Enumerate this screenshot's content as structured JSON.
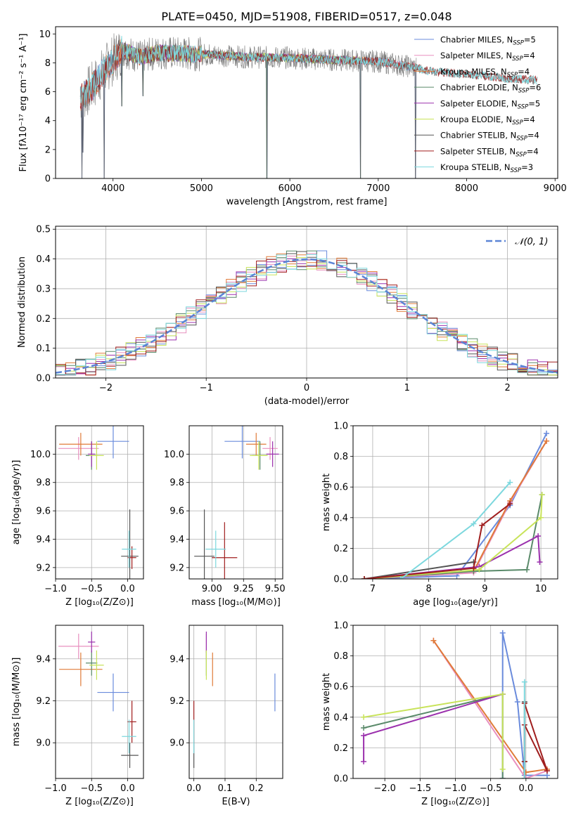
{
  "figure": {
    "title": "PLATE=0450, MJD=51908, FIBERID=0517, z=0.048"
  },
  "colors": {
    "Chabrier MILES": "#6a8bdc",
    "Salpeter MILES": "#e88fbf",
    "Kroupa MILES": "#e07b39",
    "Chabrier ELODIE": "#5a8a6a",
    "Salpeter ELODIE": "#9b30ad",
    "Kroupa ELODIE": "#c8e35a",
    "Chabrier STELIB": "#555555",
    "Salpeter STELIB": "#a01e1e",
    "Kroupa STELIB": "#7dd8de",
    "normal_curve": "#5b84d6"
  },
  "chart_data": [
    {
      "id": "spectrum",
      "type": "line",
      "xlabel": "wavelength [Angstrom, rest frame]",
      "ylabel": "Flux [fλ10⁻¹⁷ erg cm⁻² s⁻¹ A⁻¹]",
      "xlim": [
        3350,
        9030
      ],
      "ylim": [
        0,
        10.5
      ],
      "xticks": [
        4000,
        5000,
        6000,
        7000,
        8000,
        9000
      ],
      "yticks": [
        0,
        2,
        4,
        6,
        8,
        10
      ],
      "legend_position": "right",
      "legend": [
        {
          "model": "Chabrier MILES",
          "text": "Chabrier MILES, N",
          "sub": "SSP",
          "n": "=5"
        },
        {
          "model": "Salpeter MILES",
          "text": "Salpeter MILES, N",
          "sub": "SSP",
          "n": "=4"
        },
        {
          "model": "Kroupa MILES",
          "text": "Kroupa MILES, N",
          "sub": "SSP",
          "n": "=4"
        },
        {
          "model": "Chabrier ELODIE",
          "text": "Chabrier ELODIE, N",
          "sub": "SSP",
          "n": "=6"
        },
        {
          "model": "Salpeter ELODIE",
          "text": "Salpeter ELODIE, N",
          "sub": "SSP",
          "n": "=5"
        },
        {
          "model": "Kroupa ELODIE",
          "text": "Kroupa ELODIE, N",
          "sub": "SSP",
          "n": "=4"
        },
        {
          "model": "Chabrier STELIB",
          "text": "Chabrier STELIB, N",
          "sub": "SSP",
          "n": "=4"
        },
        {
          "model": "Salpeter STELIB",
          "text": "Salpeter STELIB, N",
          "sub": "SSP",
          "n": "=4"
        },
        {
          "model": "Kroupa STELIB",
          "text": "Kroupa STELIB, N",
          "sub": "SSP",
          "n": "=3"
        }
      ],
      "continuum": [
        [
          3650,
          5.6
        ],
        [
          3700,
          5.9
        ],
        [
          3800,
          6.6
        ],
        [
          3900,
          7.5
        ],
        [
          4000,
          8.2
        ],
        [
          4100,
          8.9
        ],
        [
          4300,
          8.4
        ],
        [
          4500,
          8.7
        ],
        [
          5000,
          8.6
        ],
        [
          5500,
          8.4
        ],
        [
          6000,
          8.35
        ],
        [
          6500,
          8.2
        ],
        [
          7000,
          8.1
        ],
        [
          7400,
          7.7
        ],
        [
          7600,
          7.4
        ],
        [
          8000,
          7.2
        ],
        [
          8500,
          6.9
        ],
        [
          8800,
          6.8
        ]
      ],
      "wavelength_range": [
        3630,
        8800
      ],
      "observed_range": [
        3630,
        7430
      ],
      "model_wavelength_ranges": {
        "MILES": [
          3630,
          7430
        ],
        "ELODIE": [
          4100,
          6800
        ],
        "STELIB": [
          3630,
          8800
        ]
      },
      "absorption_dips": [
        [
          3650,
          0.0
        ],
        [
          3660,
          1.8
        ],
        [
          3900,
          0.0
        ],
        [
          4100,
          5.0
        ],
        [
          4340,
          5.7
        ],
        [
          5740,
          0.0
        ],
        [
          6800,
          0.0
        ],
        [
          7420,
          0.0
        ]
      ]
    },
    {
      "id": "residual_hist",
      "type": "histogram",
      "xlabel": "(data-model)/error",
      "ylabel": "Normed distribution",
      "xlim": [
        -2.5,
        2.5
      ],
      "ylim": [
        0,
        0.51
      ],
      "xticks": [
        -2,
        -1,
        0,
        1,
        2
      ],
      "yticks": [
        0,
        0.1,
        0.2,
        0.3,
        0.4,
        0.5
      ],
      "bins": {
        "start": -2.5,
        "width": 0.1,
        "count": 50
      },
      "legend": [
        {
          "label": "𝒩(0, 1)",
          "style": "dashed",
          "color_key": "normal_curve",
          "position": "top-right"
        }
      ],
      "reference_curve": "normal(0,1)"
    },
    {
      "id": "age_vs_Z",
      "type": "scatter",
      "xlabel": "Z [log₁₀(Z/Z⊙)]",
      "ylabel": "age  [log₁₀(age/yr)]",
      "xlim": [
        -1.0,
        0.22
      ],
      "ylim": [
        9.12,
        10.2
      ],
      "xticks": [
        -1.0,
        -0.5,
        0.0
      ],
      "yticks": [
        9.2,
        9.4,
        9.6,
        9.8,
        10.0
      ],
      "points": [
        {
          "model": "Chabrier MILES",
          "x": -0.2,
          "y": 10.09,
          "xerr": 0.22,
          "yerr": 0.12
        },
        {
          "model": "Salpeter MILES",
          "x": -0.68,
          "y": 10.04,
          "xerr": 0.28,
          "yerr": 0.08
        },
        {
          "model": "Kroupa MILES",
          "x": -0.65,
          "y": 10.07,
          "xerr": 0.3,
          "yerr": 0.08
        },
        {
          "model": "Chabrier ELODIE",
          "x": -0.5,
          "y": 9.99,
          "xerr": 0.08,
          "yerr": 0.1
        },
        {
          "model": "Salpeter ELODIE",
          "x": -0.5,
          "y": 10.0,
          "xerr": 0.05,
          "yerr": 0.09
        },
        {
          "model": "Kroupa ELODIE",
          "x": -0.43,
          "y": 9.99,
          "xerr": 0.1,
          "yerr": 0.1
        },
        {
          "model": "Chabrier STELIB",
          "x": 0.03,
          "y": 9.28,
          "xerr": 0.12,
          "yerr": 0.33
        },
        {
          "model": "Salpeter STELIB",
          "x": 0.06,
          "y": 9.27,
          "xerr": 0.06,
          "yerr": 0.08
        },
        {
          "model": "Kroupa STELIB",
          "x": 0.02,
          "y": 9.33,
          "xerr": 0.1,
          "yerr": 0.13
        }
      ]
    },
    {
      "id": "age_vs_mass",
      "type": "scatter",
      "xlabel": "mass [log₁₀(M/M⊙)]",
      "ylabel": "",
      "xlim": [
        8.82,
        9.56
      ],
      "ylim": [
        9.12,
        10.2
      ],
      "xticks": [
        9.0,
        9.25,
        9.5
      ],
      "yticks": [
        9.2,
        9.4,
        9.6,
        9.8,
        10.0
      ],
      "points": [
        {
          "model": "Chabrier MILES",
          "x": 9.24,
          "y": 10.09,
          "xerr": 0.14,
          "yerr": 0.12
        },
        {
          "model": "Salpeter MILES",
          "x": 9.46,
          "y": 10.04,
          "xerr": 0.06,
          "yerr": 0.08
        },
        {
          "model": "Kroupa MILES",
          "x": 9.35,
          "y": 10.07,
          "xerr": 0.08,
          "yerr": 0.08
        },
        {
          "model": "Chabrier ELODIE",
          "x": 9.38,
          "y": 9.99,
          "xerr": 0.06,
          "yerr": 0.1
        },
        {
          "model": "Salpeter ELODIE",
          "x": 9.48,
          "y": 10.0,
          "xerr": 0.05,
          "yerr": 0.09
        },
        {
          "model": "Kroupa ELODIE",
          "x": 9.37,
          "y": 9.99,
          "xerr": 0.07,
          "yerr": 0.1
        },
        {
          "model": "Chabrier STELIB",
          "x": 8.94,
          "y": 9.28,
          "xerr": 0.08,
          "yerr": 0.33
        },
        {
          "model": "Salpeter STELIB",
          "x": 9.1,
          "y": 9.27,
          "xerr": 0.1,
          "yerr": 0.25
        },
        {
          "model": "Kroupa STELIB",
          "x": 9.03,
          "y": 9.33,
          "xerr": 0.08,
          "yerr": 0.13
        }
      ]
    },
    {
      "id": "weight_vs_age",
      "type": "line",
      "xlabel": "age  [log₁₀(age/yr)]",
      "ylabel": "mass weight",
      "xlim": [
        6.65,
        10.3
      ],
      "ylim": [
        0,
        1.0
      ],
      "xticks": [
        7,
        8,
        9,
        10
      ],
      "yticks": [
        0.0,
        0.2,
        0.4,
        0.6,
        0.8,
        1.0
      ],
      "grid": true,
      "series": [
        {
          "model": "Chabrier MILES",
          "x": [
            6.85,
            8.5,
            9.45,
            10.1
          ],
          "y": [
            0.0,
            0.02,
            0.48,
            0.95
          ]
        },
        {
          "model": "Salpeter MILES",
          "x": [
            6.85,
            8.8,
            9.45,
            10.1
          ],
          "y": [
            0.0,
            0.04,
            0.5,
            0.9
          ]
        },
        {
          "model": "Kroupa MILES",
          "x": [
            6.85,
            8.8,
            9.45,
            10.1
          ],
          "y": [
            0.0,
            0.05,
            0.51,
            0.9
          ]
        },
        {
          "model": "Chabrier ELODIE",
          "x": [
            6.85,
            8.8,
            9.75,
            10.02
          ],
          "y": [
            0.0,
            0.05,
            0.06,
            0.55
          ]
        },
        {
          "model": "Salpeter ELODIE",
          "x": [
            6.85,
            8.9,
            9.95,
            9.98
          ],
          "y": [
            0.0,
            0.08,
            0.28,
            0.11
          ]
        },
        {
          "model": "Kroupa ELODIE",
          "x": [
            6.85,
            8.9,
            10.0,
            10.02
          ],
          "y": [
            0.0,
            0.06,
            0.4,
            0.55
          ]
        },
        {
          "model": "Chabrier STELIB",
          "x": [
            6.85,
            8.8
          ],
          "y": [
            0.0,
            0.11
          ]
        },
        {
          "model": "Salpeter STELIB",
          "x": [
            6.85,
            8.8,
            8.95,
            9.45
          ],
          "y": [
            0.0,
            0.07,
            0.35,
            0.49
          ]
        },
        {
          "model": "Kroupa STELIB",
          "x": [
            7.5,
            8.8,
            9.45
          ],
          "y": [
            0.0,
            0.36,
            0.63
          ]
        }
      ]
    },
    {
      "id": "mass_vs_Z",
      "type": "scatter",
      "xlabel": "Z [log₁₀(Z/Z⊙)]",
      "ylabel": "mass [log₁₀(M/M⊙)]",
      "xlim": [
        -1.0,
        0.22
      ],
      "ylim": [
        8.83,
        9.56
      ],
      "xticks": [
        -1.0,
        -0.5,
        0.0
      ],
      "yticks": [
        9.0,
        9.2,
        9.4
      ],
      "points": [
        {
          "model": "Chabrier MILES",
          "x": -0.2,
          "y": 9.24,
          "xerr": 0.22,
          "yerr": 0.09
        },
        {
          "model": "Salpeter MILES",
          "x": -0.68,
          "y": 9.46,
          "xerr": 0.28,
          "yerr": 0.06
        },
        {
          "model": "Kroupa MILES",
          "x": -0.65,
          "y": 9.35,
          "xerr": 0.3,
          "yerr": 0.08
        },
        {
          "model": "Chabrier ELODIE",
          "x": -0.5,
          "y": 9.38,
          "xerr": 0.08,
          "yerr": 0.06
        },
        {
          "model": "Salpeter ELODIE",
          "x": -0.5,
          "y": 9.48,
          "xerr": 0.05,
          "yerr": 0.05
        },
        {
          "model": "Kroupa ELODIE",
          "x": -0.43,
          "y": 9.37,
          "xerr": 0.1,
          "yerr": 0.07
        },
        {
          "model": "Chabrier STELIB",
          "x": 0.03,
          "y": 8.94,
          "xerr": 0.12,
          "yerr": 0.06
        },
        {
          "model": "Salpeter STELIB",
          "x": 0.06,
          "y": 9.1,
          "xerr": 0.06,
          "yerr": 0.1
        },
        {
          "model": "Kroupa STELIB",
          "x": 0.02,
          "y": 9.03,
          "xerr": 0.1,
          "yerr": 0.08
        }
      ]
    },
    {
      "id": "mass_vs_ebv",
      "type": "scatter",
      "xlabel": "E(B-V)",
      "ylabel": "",
      "xlim": [
        -0.015,
        0.285
      ],
      "ylim": [
        8.83,
        9.56
      ],
      "xticks": [
        0.0,
        0.1,
        0.2
      ],
      "yticks": [
        9.0,
        9.2,
        9.4
      ],
      "points": [
        {
          "model": "Chabrier MILES",
          "x": 0.26,
          "y": 9.24,
          "xerr": 0.0,
          "yerr": 0.09
        },
        {
          "model": "Salpeter MILES",
          "x": 0.04,
          "y": 9.46,
          "xerr": 0.0,
          "yerr": 0.06
        },
        {
          "model": "Kroupa MILES",
          "x": 0.06,
          "y": 9.35,
          "xerr": 0.0,
          "yerr": 0.08
        },
        {
          "model": "Chabrier ELODIE",
          "x": 0.04,
          "y": 9.38,
          "xerr": 0.0,
          "yerr": 0.06
        },
        {
          "model": "Salpeter ELODIE",
          "x": 0.04,
          "y": 9.48,
          "xerr": 0.0,
          "yerr": 0.05
        },
        {
          "model": "Kroupa ELODIE",
          "x": 0.04,
          "y": 9.37,
          "xerr": 0.0,
          "yerr": 0.07
        },
        {
          "model": "Chabrier STELIB",
          "x": 0.0,
          "y": 8.94,
          "xerr": 0.0,
          "yerr": 0.06
        },
        {
          "model": "Salpeter STELIB",
          "x": 0.0,
          "y": 9.1,
          "xerr": 0.0,
          "yerr": 0.1
        },
        {
          "model": "Kroupa STELIB",
          "x": 0.0,
          "y": 9.03,
          "xerr": 0.0,
          "yerr": 0.08
        }
      ]
    },
    {
      "id": "weight_vs_Z",
      "type": "line",
      "xlabel": "Z [log₁₀(Z/Z⊙)]",
      "ylabel": "mass weight",
      "xlim": [
        -2.45,
        0.45
      ],
      "ylim": [
        0,
        1.0
      ],
      "xticks": [
        -2.0,
        -1.5,
        -1.0,
        -0.5,
        0.0
      ],
      "yticks": [
        0.0,
        0.2,
        0.4,
        0.6,
        0.8,
        1.0
      ],
      "grid": true,
      "series": [
        {
          "model": "Chabrier MILES",
          "x": [
            -0.33,
            -0.33,
            -0.12,
            -0.02,
            0.3
          ],
          "y": [
            0.0,
            0.95,
            0.5,
            0.02,
            0.02
          ]
        },
        {
          "model": "Salpeter MILES",
          "x": [
            -1.31,
            0.0,
            0.3
          ],
          "y": [
            0.9,
            0.0,
            0.05
          ]
        },
        {
          "model": "Kroupa MILES",
          "x": [
            -1.31,
            0.0,
            0.3
          ],
          "y": [
            0.9,
            0.04,
            0.06
          ]
        },
        {
          "model": "Chabrier ELODIE",
          "x": [
            -2.3,
            -0.33,
            -0.33
          ],
          "y": [
            0.33,
            0.55,
            0.0
          ]
        },
        {
          "model": "Salpeter ELODIE",
          "x": [
            -2.3,
            -2.3,
            -0.33
          ],
          "y": [
            0.11,
            0.28,
            0.55
          ]
        },
        {
          "model": "Kroupa ELODIE",
          "x": [
            -2.3,
            -0.33,
            -0.33
          ],
          "y": [
            0.4,
            0.55,
            0.06
          ]
        },
        {
          "model": "Chabrier STELIB",
          "x": [
            -0.02,
            -0.02,
            -0.02
          ],
          "y": [
            0.0,
            0.11,
            0.5
          ]
        },
        {
          "model": "Salpeter STELIB",
          "x": [
            -0.02,
            0.3,
            -0.02,
            -0.02
          ],
          "y": [
            0.49,
            0.05,
            0.35,
            0.11
          ]
        },
        {
          "model": "Kroupa STELIB",
          "x": [
            -0.02,
            -0.02
          ],
          "y": [
            0.63,
            0.0
          ]
        }
      ]
    }
  ]
}
